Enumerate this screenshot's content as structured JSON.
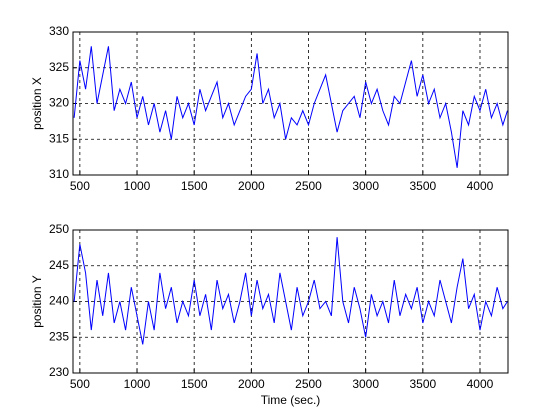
{
  "chart_data": [
    {
      "type": "line",
      "ylabel": "position X",
      "color": "#0000ff",
      "grid": true,
      "x": [
        450,
        500,
        550,
        600,
        650,
        700,
        750,
        800,
        850,
        900,
        950,
        1000,
        1050,
        1100,
        1150,
        1200,
        1250,
        1300,
        1350,
        1400,
        1450,
        1500,
        1550,
        1600,
        1650,
        1700,
        1750,
        1800,
        1850,
        1900,
        1950,
        2000,
        2050,
        2100,
        2150,
        2200,
        2250,
        2300,
        2350,
        2400,
        2450,
        2500,
        2550,
        2600,
        2650,
        2700,
        2750,
        2800,
        2850,
        2900,
        2950,
        3000,
        3050,
        3100,
        3150,
        3200,
        3250,
        3300,
        3350,
        3400,
        3450,
        3500,
        3550,
        3600,
        3650,
        3700,
        3750,
        3800,
        3850,
        3900,
        3950,
        4000,
        4050,
        4100,
        4150,
        4200,
        4240
      ],
      "values": [
        318,
        326,
        322,
        328,
        320,
        324,
        328,
        319,
        322,
        320,
        323,
        318,
        321,
        317,
        320,
        316,
        319,
        315,
        321,
        318,
        320,
        317,
        322,
        319,
        321,
        323,
        318,
        320,
        317,
        319,
        321,
        322,
        327,
        320,
        322,
        318,
        320,
        315,
        318,
        317,
        319,
        317,
        320,
        322,
        324,
        320,
        316,
        319,
        320,
        321,
        318,
        323,
        320,
        322,
        319,
        317,
        321,
        320,
        323,
        326,
        321,
        324,
        320,
        322,
        318,
        320,
        316,
        311,
        319,
        317,
        321,
        319,
        322,
        318,
        320,
        317,
        319
      ],
      "xlim": [
        440,
        4245
      ],
      "xticks": [
        500,
        1000,
        1500,
        2000,
        2500,
        3000,
        3500,
        4000
      ],
      "ylim": [
        310,
        330
      ],
      "yticks": [
        310,
        315,
        320,
        325,
        330
      ]
    },
    {
      "type": "line",
      "ylabel": "position Y",
      "xlabel": "Time (sec.)",
      "color": "#0000ff",
      "grid": true,
      "x": [
        450,
        500,
        550,
        600,
        650,
        700,
        750,
        800,
        850,
        900,
        950,
        1000,
        1050,
        1100,
        1150,
        1200,
        1250,
        1300,
        1350,
        1400,
        1450,
        1500,
        1550,
        1600,
        1650,
        1700,
        1750,
        1800,
        1850,
        1900,
        1950,
        2000,
        2050,
        2100,
        2150,
        2200,
        2250,
        2300,
        2350,
        2400,
        2450,
        2500,
        2550,
        2600,
        2650,
        2700,
        2750,
        2800,
        2850,
        2900,
        2950,
        3000,
        3050,
        3100,
        3150,
        3200,
        3250,
        3300,
        3350,
        3400,
        3450,
        3500,
        3550,
        3600,
        3650,
        3700,
        3750,
        3800,
        3850,
        3900,
        3950,
        4000,
        4050,
        4100,
        4150,
        4200,
        4240
      ],
      "values": [
        240,
        248,
        244,
        236,
        243,
        238,
        244,
        237,
        240,
        236,
        242,
        238,
        234,
        240,
        236,
        244,
        239,
        242,
        237,
        240,
        238,
        243,
        238,
        241,
        236,
        243,
        239,
        241,
        237,
        240,
        244,
        238,
        243,
        239,
        241,
        237,
        244,
        240,
        236,
        242,
        238,
        240,
        243,
        239,
        240,
        238,
        249,
        240,
        237,
        242,
        239,
        235,
        241,
        238,
        240,
        237,
        243,
        238,
        241,
        239,
        242,
        237,
        240,
        238,
        243,
        240,
        237,
        242,
        246,
        239,
        241,
        236,
        240,
        238,
        242,
        239,
        240
      ],
      "xlim": [
        440,
        4245
      ],
      "xticks": [
        500,
        1000,
        1500,
        2000,
        2500,
        3000,
        3500,
        4000
      ],
      "ylim": [
        230,
        250
      ],
      "yticks": [
        230,
        235,
        240,
        245,
        250
      ]
    }
  ]
}
